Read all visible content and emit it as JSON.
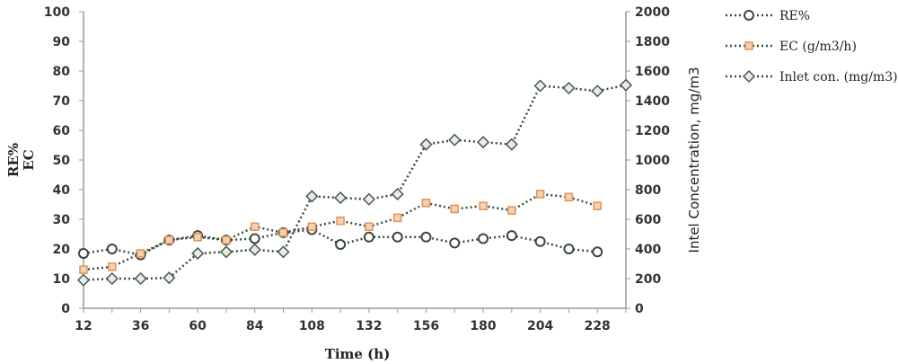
{
  "chart_data": {
    "type": "line",
    "title": "",
    "xlabel": "Time (h)",
    "ylabel_left": [
      "RE%",
      "EC"
    ],
    "ylabel_right": "Intel Concentration, mg/m3",
    "x_ticks": [
      "12",
      "36",
      "60",
      "84",
      "108",
      "132",
      "156",
      "180",
      "204",
      "228"
    ],
    "xlim": [
      12,
      240
    ],
    "ylim_left": [
      0,
      100
    ],
    "ylim_right": [
      0,
      2000
    ],
    "y_ticks_left": [
      "0",
      "10",
      "20",
      "30",
      "40",
      "50",
      "60",
      "70",
      "80",
      "90",
      "100"
    ],
    "y_ticks_right": [
      "0",
      "200",
      "400",
      "600",
      "800",
      "1000",
      "1200",
      "1400",
      "1600",
      "1800",
      "2000"
    ],
    "grid": false,
    "legend_position": "top-right",
    "series": [
      {
        "name": "RE%",
        "axis": "left",
        "marker": "circle",
        "color": "#3a4a3a",
        "x": [
          12,
          24,
          36,
          48,
          60,
          72,
          84,
          96,
          108,
          120,
          132,
          144,
          156,
          168,
          180,
          192,
          204,
          216,
          228
        ],
        "y": [
          18.5,
          20,
          18,
          23,
          24.5,
          23,
          23.5,
          25.5,
          26.5,
          21.5,
          24,
          24,
          24,
          22,
          23.5,
          24.5,
          22.5,
          20,
          19
        ]
      },
      {
        "name": "EC (g/m3/h)",
        "axis": "left",
        "marker": "square",
        "color": "#e0935a",
        "x": [
          12,
          24,
          36,
          48,
          60,
          72,
          84,
          96,
          108,
          120,
          132,
          144,
          156,
          168,
          180,
          192,
          204,
          216,
          228
        ],
        "y": [
          13,
          14,
          18.5,
          23,
          24,
          23,
          27.5,
          25.5,
          27.5,
          29.5,
          27.5,
          30.5,
          35.5,
          33.5,
          34.5,
          33,
          38.5,
          37.5,
          34.5
        ]
      },
      {
        "name": "Inlet con. (mg/m3)",
        "axis": "right",
        "marker": "diamond",
        "color": "#4a5a4a",
        "x": [
          12,
          24,
          36,
          48,
          60,
          72,
          84,
          96,
          108,
          120,
          132,
          144,
          156,
          168,
          180,
          192,
          204,
          216,
          228,
          240
        ],
        "y": [
          190,
          200,
          200,
          205,
          370,
          380,
          395,
          380,
          755,
          745,
          735,
          770,
          1105,
          1135,
          1120,
          1105,
          1500,
          1485,
          1465,
          1505
        ]
      }
    ]
  }
}
